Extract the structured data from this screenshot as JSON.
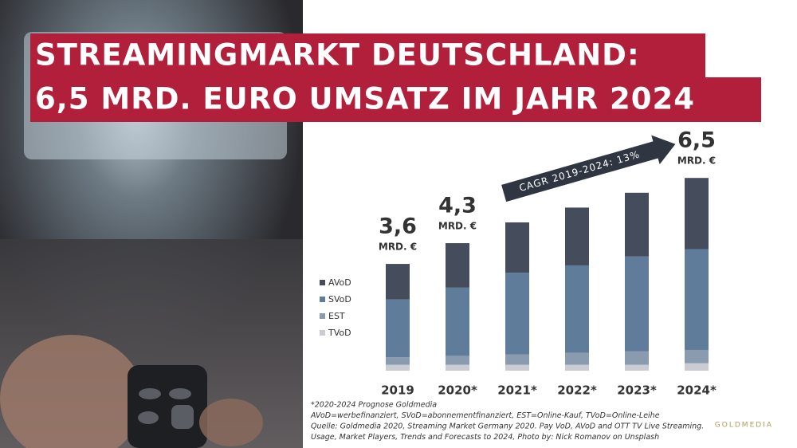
{
  "chart_data": {
    "type": "stacked-bar",
    "title": [
      "STREAMINGMARKT DEUTSCHLAND:",
      "6,5 MRD. EURO UMSATZ IM JAHR 2024"
    ],
    "categories": [
      "2019",
      "2020*",
      "2021*",
      "2022*",
      "2023*",
      "2024*"
    ],
    "series": [
      {
        "name": "TVoD",
        "color": "#c9cdd3",
        "values": [
          0.2,
          0.2,
          0.2,
          0.2,
          0.2,
          0.25
        ]
      },
      {
        "name": "EST",
        "color": "#8a9bb0",
        "values": [
          0.25,
          0.3,
          0.35,
          0.4,
          0.45,
          0.45
        ]
      },
      {
        "name": "SVoD",
        "color": "#5f7d9a",
        "values": [
          1.95,
          2.3,
          2.75,
          2.95,
          3.2,
          3.4
        ]
      },
      {
        "name": "AVoD",
        "color": "#454d5c",
        "values": [
          1.2,
          1.5,
          1.7,
          1.95,
          2.15,
          2.4
        ]
      }
    ],
    "totals": [
      3.6,
      4.3,
      null,
      null,
      null,
      6.5
    ],
    "total_labels": [
      "3,6",
      "4,3",
      null,
      null,
      null,
      "6,5"
    ],
    "total_unit": "MRD. €",
    "ylim": [
      0,
      7
    ],
    "annotation": "CAGR 2019-2024: 13%",
    "footnotes": [
      "*2020-2024 Prognose Goldmedia",
      "AVoD=werbefinanziert, SVoD=abonnementfinanziert, EST=Online-Kauf, TVoD=Online-Leihe",
      "Quelle: Goldmedia 2020, Streaming Market Germany 2020. Pay VoD, AVoD and OTT TV Live Streaming.",
      "Usage, Market Players, Trends and Forecasts to 2024, Photo by: Nick Romanov on Unsplash"
    ],
    "logo": "GOLDMEDIA"
  }
}
